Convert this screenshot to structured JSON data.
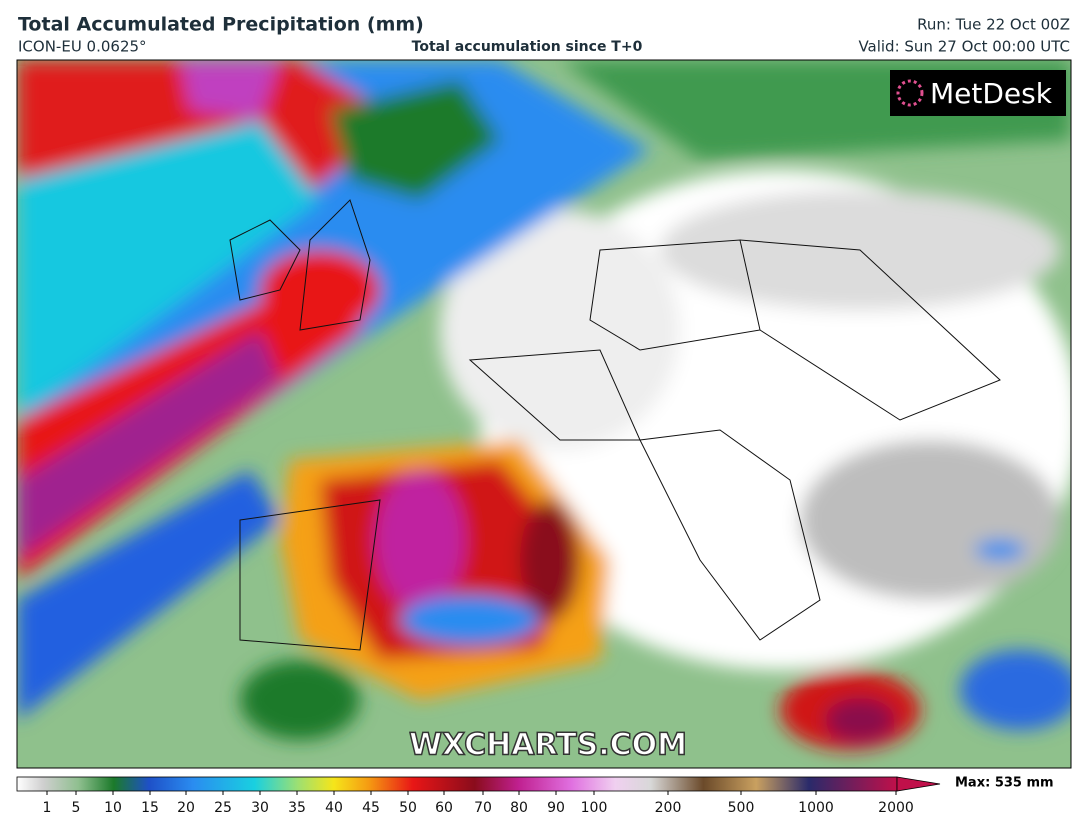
{
  "header": {
    "title": "Total Accumulated Precipitation (mm)",
    "model": "ICON-EU 0.0625°",
    "subtitle": "Total accumulation since T+0",
    "run": "Run: Tue 22 Oct 00Z",
    "valid": "Valid: Sun 27 Oct 00:00 UTC"
  },
  "map": {
    "logo": "MetDesk",
    "watermark": "WXCHARTS.COM"
  },
  "colorbar": {
    "ticks": [
      1,
      5,
      10,
      15,
      20,
      25,
      30,
      35,
      40,
      45,
      50,
      60,
      70,
      80,
      90,
      100,
      200,
      500,
      1000,
      2000
    ],
    "max_label": "Max: 535 mm"
  }
}
